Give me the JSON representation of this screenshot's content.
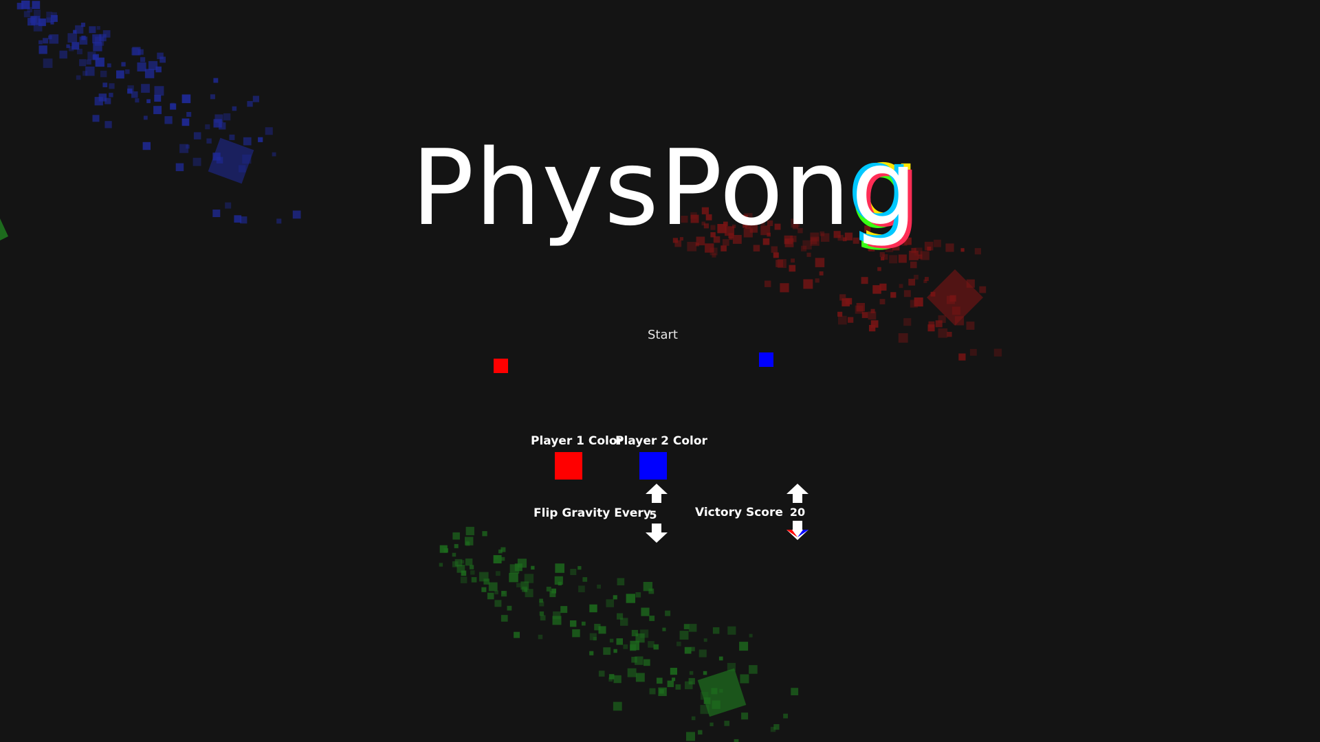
{
  "title": {
    "prefix": "PhysPon",
    "glitch_letter": "g"
  },
  "menu": {
    "start_label": "Start"
  },
  "players": {
    "p1": {
      "label": "Player 1 Color",
      "color": "#ff0000"
    },
    "p2": {
      "label": "Player 2 Color",
      "color": "#0000ff"
    }
  },
  "settings": {
    "flip_gravity": {
      "label": "Flip Gravity Every",
      "value": "5"
    },
    "victory_score": {
      "label": "Victory Score",
      "value": "20"
    }
  },
  "colors": {
    "background": "#141414",
    "particle_blue": "#1f2a9a",
    "particle_red": "#7a1414",
    "particle_green": "#1d6b1d"
  },
  "icons": {
    "increment": "arrow-up-icon",
    "decrement": "arrow-down-icon"
  }
}
